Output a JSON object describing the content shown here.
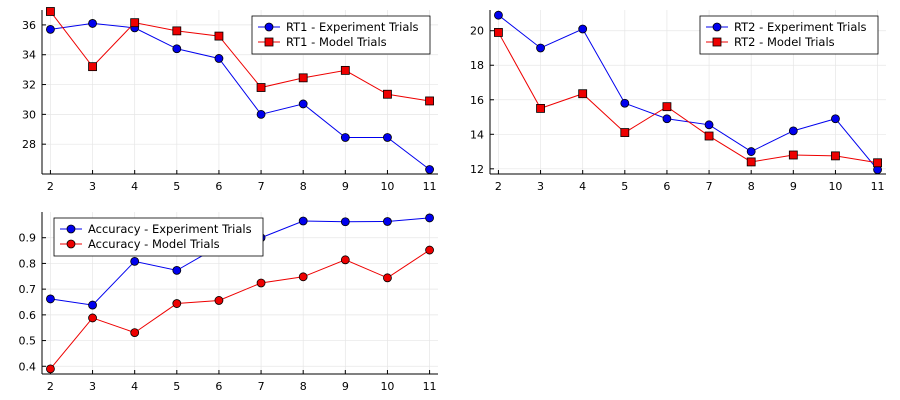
{
  "chart_data": [
    {
      "type": "line",
      "x": [
        2,
        3,
        4,
        5,
        6,
        7,
        8,
        9,
        10,
        11
      ],
      "xticks": [
        "2",
        "3",
        "4",
        "5",
        "6",
        "7",
        "8",
        "9",
        "10",
        "11"
      ],
      "xlim": [
        1.8,
        11.2
      ],
      "ylim": [
        26.0,
        37.0
      ],
      "yticks": [
        "28",
        "30",
        "32",
        "34",
        "36"
      ],
      "ytick_values": [
        28,
        30,
        32,
        34,
        36
      ],
      "grid": true,
      "legend_position": "top-right",
      "series": [
        {
          "name": "RT1 - Experiment Trials",
          "color": "#0000ee",
          "marker": "circle",
          "values": [
            35.7,
            36.1,
            35.8,
            34.4,
            33.75,
            30.0,
            30.7,
            28.45,
            28.45,
            26.3
          ]
        },
        {
          "name": "RT1 - Model Trials",
          "color": "#ee0000",
          "marker": "square",
          "values": [
            36.9,
            33.2,
            36.15,
            35.6,
            35.25,
            31.8,
            32.45,
            32.95,
            31.35,
            30.9
          ]
        }
      ]
    },
    {
      "type": "line",
      "x": [
        2,
        3,
        4,
        5,
        6,
        7,
        8,
        9,
        10,
        11
      ],
      "xticks": [
        "2",
        "3",
        "4",
        "5",
        "6",
        "7",
        "8",
        "9",
        "10",
        "11"
      ],
      "xlim": [
        1.8,
        11.2
      ],
      "ylim": [
        11.7,
        21.2
      ],
      "yticks": [
        "12",
        "14",
        "16",
        "18",
        "20"
      ],
      "ytick_values": [
        12,
        14,
        16,
        18,
        20
      ],
      "grid": true,
      "legend_position": "top-right",
      "series": [
        {
          "name": "RT2 - Experiment Trials",
          "color": "#0000ee",
          "marker": "circle",
          "values": [
            20.9,
            19.0,
            20.1,
            15.8,
            14.9,
            14.55,
            13.0,
            14.2,
            14.9,
            11.95
          ]
        },
        {
          "name": "RT2 - Model Trials",
          "color": "#ee0000",
          "marker": "square",
          "values": [
            19.9,
            15.5,
            16.35,
            14.1,
            15.6,
            13.9,
            12.4,
            12.8,
            12.75,
            12.35
          ]
        }
      ]
    },
    {
      "type": "line",
      "x": [
        2,
        3,
        4,
        5,
        6,
        7,
        8,
        9,
        10,
        11
      ],
      "xticks": [
        "2",
        "3",
        "4",
        "5",
        "6",
        "7",
        "8",
        "9",
        "10",
        "11"
      ],
      "xlim": [
        1.8,
        11.2
      ],
      "ylim": [
        0.37,
        1.0
      ],
      "yticks": [
        "0.4",
        "0.5",
        "0.6",
        "0.7",
        "0.8",
        "0.9"
      ],
      "ytick_values": [
        0.4,
        0.5,
        0.6,
        0.7,
        0.8,
        0.9
      ],
      "grid": true,
      "legend_position": "top-left",
      "series": [
        {
          "name": "Accuracy - Experiment Trials",
          "color": "#0000ee",
          "marker": "circle",
          "values": [
            0.662,
            0.638,
            0.808,
            0.773,
            0.867,
            0.9,
            0.965,
            0.962,
            0.963,
            0.977
          ]
        },
        {
          "name": "Accuracy - Model Trials",
          "color": "#ee0000",
          "marker": "circle",
          "values": [
            0.39,
            0.588,
            0.531,
            0.644,
            0.656,
            0.724,
            0.748,
            0.814,
            0.744,
            0.852
          ]
        }
      ]
    }
  ]
}
